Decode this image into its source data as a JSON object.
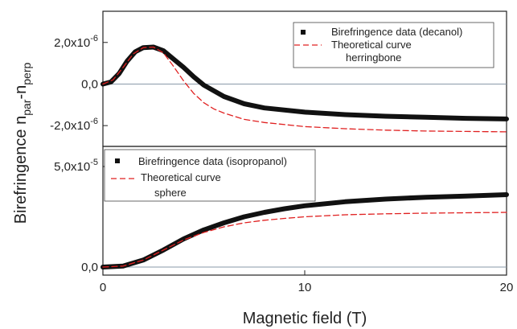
{
  "chart_data": [
    {
      "type": "line",
      "panel": "top",
      "x_range": [
        0,
        20
      ],
      "ylim": [
        -3e-06,
        3.5e-06
      ],
      "yticks": [
        {
          "value": 2e-06,
          "mantissa": "2,0x10",
          "exp": "-6"
        },
        {
          "value": 0.0,
          "mantissa": "0,0",
          "exp": ""
        },
        {
          "value": -2e-06,
          "mantissa": "-2,0x10",
          "exp": "-6"
        }
      ],
      "baseline": 0.0,
      "legend_position": "top-right",
      "series": [
        {
          "name": "Birefringence data (decanol)",
          "style": "thick-black",
          "color": "#111111",
          "x": [
            0,
            0.4,
            0.8,
            1.2,
            1.6,
            2.0,
            2.5,
            3.0,
            3.5,
            4.0,
            4.5,
            5.0,
            6.0,
            7.0,
            8.0,
            10.0,
            12.0,
            14.0,
            16.0,
            18.0,
            20.0
          ],
          "y": [
            0,
            1e-07,
            5e-07,
            1.1e-06,
            1.55e-06,
            1.75e-06,
            1.78e-06,
            1.6e-06,
            1.2e-06,
            8e-07,
            3.5e-07,
            -5e-08,
            -6e-07,
            -9.5e-07,
            -1.15e-06,
            -1.35e-06,
            -1.47e-06,
            -1.55e-06,
            -1.6e-06,
            -1.65e-06,
            -1.68e-06
          ]
        },
        {
          "name": "Theoretical curve",
          "name_line2": "herringbone",
          "style": "dashed",
          "color": "#e02020",
          "x": [
            0,
            0.5,
            1.0,
            1.5,
            2.0,
            2.5,
            3.0,
            3.5,
            4.0,
            4.5,
            5.0,
            5.5,
            6.0,
            7.0,
            8.0,
            10.0,
            12.0,
            14.0,
            16.0,
            18.0,
            20.0
          ],
          "y": [
            0,
            2e-07,
            8e-07,
            1.45e-06,
            1.75e-06,
            1.78e-06,
            1.5e-06,
            8.5e-07,
            1.5e-07,
            -4.5e-07,
            -9e-07,
            -1.2e-06,
            -1.4e-06,
            -1.7e-06,
            -1.85e-06,
            -2.05e-06,
            -2.15e-06,
            -2.22e-06,
            -2.26e-06,
            -2.28e-06,
            -2.3e-06
          ]
        }
      ]
    },
    {
      "type": "line",
      "panel": "bottom",
      "x_range": [
        0,
        20
      ],
      "xticks": [
        "0",
        "10",
        "20"
      ],
      "xlabel": "Magnetic field (T)",
      "ylim": [
        -4e-06,
        6e-05
      ],
      "yticks": [
        {
          "value": 5e-05,
          "mantissa": "5,0x10",
          "exp": "-5"
        },
        {
          "value": 0.0,
          "mantissa": "0,0",
          "exp": ""
        }
      ],
      "baseline": 0.0,
      "legend_position": "top-left",
      "series": [
        {
          "name": "Birefringence data (isopropanol)",
          "style": "thick-black",
          "color": "#111111",
          "x": [
            0,
            1,
            2,
            3,
            4,
            5,
            6,
            7,
            8,
            9,
            10,
            12,
            14,
            16,
            18,
            20
          ],
          "y": [
            0,
            5e-07,
            3.5e-06,
            8.5e-06,
            1.4e-05,
            1.85e-05,
            2.2e-05,
            2.5e-05,
            2.72e-05,
            2.9e-05,
            3.05e-05,
            3.25e-05,
            3.38e-05,
            3.47e-05,
            3.53e-05,
            3.6e-05
          ]
        },
        {
          "name": "Theoretical curve",
          "name_line2": "sphere",
          "style": "dashed",
          "color": "#e02020",
          "x": [
            0,
            1,
            2,
            3,
            4,
            5,
            6,
            7,
            8,
            9,
            10,
            12,
            14,
            16,
            18,
            20
          ],
          "y": [
            0,
            5e-07,
            3.5e-06,
            8.5e-06,
            1.35e-05,
            1.72e-05,
            2e-05,
            2.2e-05,
            2.33e-05,
            2.42e-05,
            2.5e-05,
            2.6e-05,
            2.65e-05,
            2.68e-05,
            2.7e-05,
            2.72e-05
          ]
        }
      ]
    }
  ],
  "ylabel": {
    "main": "Birefringence n",
    "sub1": "par",
    "dash": "-n",
    "sub2": "perp"
  }
}
